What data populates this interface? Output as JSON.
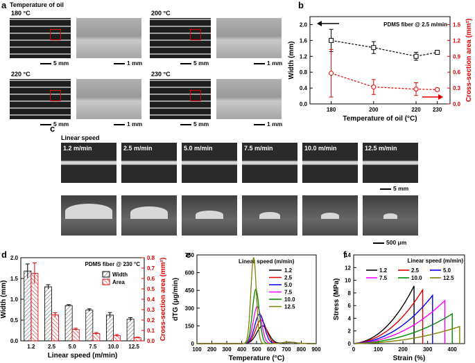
{
  "panel_a": {
    "letter": "a",
    "title": "Temperature of oil",
    "images": [
      {
        "temp": "180 °C",
        "scale_left": "5 mm",
        "scale_right": "1 mm"
      },
      {
        "temp": "200 °C",
        "scale_left": "5 mm",
        "scale_right": "1 mm"
      },
      {
        "temp": "220 °C",
        "scale_left": "5 mm",
        "scale_right": "1 mm"
      },
      {
        "temp": "230 °C",
        "scale_left": "5 mm",
        "scale_right": "1 mm"
      }
    ]
  },
  "panel_c": {
    "letter": "c",
    "title": "Linear speed",
    "speeds": [
      "1.2 m/min",
      "2.5 m/min",
      "5.0 m/min",
      "7.5 m/min",
      "10.0 m/min",
      "12.5 m/min"
    ],
    "scale_top": "5 mm",
    "scale_bottom": "500 μm"
  },
  "chart_data": [
    {
      "id": "b",
      "type": "scatter",
      "annotation": "PDMS fiber @ 2.5 m/min",
      "xlabel": "Temperature of oil (°C)",
      "ylabel": "Width (mm)",
      "y2label": "Cross-section area (mm²)",
      "x": [
        180,
        200,
        220,
        230
      ],
      "xticks": [
        "180",
        "200",
        "220",
        "230"
      ],
      "xlim": [
        170,
        236
      ],
      "ylim": [
        0,
        2.2
      ],
      "yticks": [
        "0.0",
        "0.4",
        "0.8",
        "1.2",
        "1.6",
        "2.0"
      ],
      "y2lim": [
        0,
        1.65
      ],
      "y2ticks": [
        "0.0",
        "0.3",
        "0.6",
        "0.9",
        "1.2",
        "1.5"
      ],
      "series": [
        {
          "name": "Width",
          "axis": "left",
          "color": "#000000",
          "values": [
            1.6,
            1.42,
            1.2,
            1.3
          ],
          "err": [
            0.28,
            0.15,
            0.1,
            0.05
          ]
        },
        {
          "name": "Cross-section area",
          "axis": "right",
          "color": "#e00000",
          "values": [
            0.58,
            0.32,
            0.28,
            0.27
          ],
          "err": [
            0.45,
            0.14,
            0.12,
            0.03
          ]
        }
      ]
    },
    {
      "id": "d",
      "type": "bar",
      "annotation": "PDMS fiber @ 230 °C",
      "xlabel": "Linear speed (m/min)",
      "ylabel": "Width (mm)",
      "y2label": "Cross-section area (mm²)",
      "categories": [
        "1.2",
        "2.5",
        "5.0",
        "7.5",
        "10.0",
        "12.5"
      ],
      "ylim": [
        0,
        2.0
      ],
      "yticks": [
        "0.0",
        "0.5",
        "1.0",
        "1.5",
        "2.0"
      ],
      "y2lim": [
        0,
        0.8
      ],
      "y2ticks": [
        "0.0",
        "0.1",
        "0.2",
        "0.3",
        "0.4",
        "0.5",
        "0.6",
        "0.7",
        "0.8"
      ],
      "legend": [
        "Width",
        "Area"
      ],
      "series": [
        {
          "name": "Width",
          "axis": "left",
          "values": [
            1.68,
            1.3,
            0.85,
            0.74,
            0.62,
            0.52
          ],
          "err": [
            0.17,
            0.05,
            0.02,
            0.03,
            0.06,
            0.04
          ]
        },
        {
          "name": "Area",
          "axis": "right",
          "values": [
            0.65,
            0.25,
            0.11,
            0.07,
            0.05,
            0.03
          ],
          "err": [
            0.1,
            0.02,
            0.01,
            0.01,
            0.01,
            0.005
          ]
        }
      ]
    },
    {
      "id": "e",
      "type": "line",
      "legend_title": "Linear speed (m/min)",
      "xlabel": "Temperature (°C)",
      "ylabel": "dTG (μg/min)",
      "xlim": [
        100,
        900
      ],
      "xticks": [
        "100",
        "200",
        "300",
        "400",
        "500",
        "600",
        "700",
        "800",
        "900"
      ],
      "ylim": [
        0,
        750
      ],
      "yticks": [
        "0",
        "150",
        "300",
        "450",
        "600",
        "750"
      ],
      "series": [
        {
          "name": "1.2",
          "color": "#000000",
          "peak_x": 540,
          "peak_y": 150,
          "width": 55
        },
        {
          "name": "2.5",
          "color": "#e00000",
          "peak_x": 530,
          "peak_y": 200,
          "width": 50
        },
        {
          "name": "5.0",
          "color": "#0000ee",
          "peak_x": 520,
          "peak_y": 250,
          "width": 45
        },
        {
          "name": "7.5",
          "color": "#ff00ff",
          "peak_x": 505,
          "peak_y": 315,
          "width": 38
        },
        {
          "name": "10.0",
          "color": "#008800",
          "peak_x": 495,
          "peak_y": 460,
          "width": 32
        },
        {
          "name": "12.5",
          "color": "#808000",
          "peak_x": 480,
          "peak_y": 730,
          "width": 26
        }
      ]
    },
    {
      "id": "f",
      "type": "line",
      "legend_title": "Linear speed (m/min)",
      "xlabel": "Strain (%)",
      "ylabel": "Stress (MPa)",
      "xlim": [
        0,
        450
      ],
      "xticks": [
        "0",
        "100",
        "200",
        "300",
        "400"
      ],
      "ylim": [
        0,
        14
      ],
      "yticks": [
        "0",
        "2",
        "4",
        "6",
        "8",
        "10",
        "12",
        "14"
      ],
      "series": [
        {
          "name": "1.2",
          "color": "#000000",
          "break_x": 245,
          "break_y": 9.1
        },
        {
          "name": "2.5",
          "color": "#e00000",
          "break_x": 280,
          "break_y": 8.5
        },
        {
          "name": "5.0",
          "color": "#0000ee",
          "break_x": 320,
          "break_y": 7.6
        },
        {
          "name": "7.5",
          "color": "#ff00ff",
          "break_x": 370,
          "break_y": 6.8
        },
        {
          "name": "10.0",
          "color": "#008800",
          "break_x": 400,
          "break_y": 4.7
        },
        {
          "name": "12.5",
          "color": "#808000",
          "break_x": 430,
          "break_y": 2.7
        }
      ]
    }
  ]
}
